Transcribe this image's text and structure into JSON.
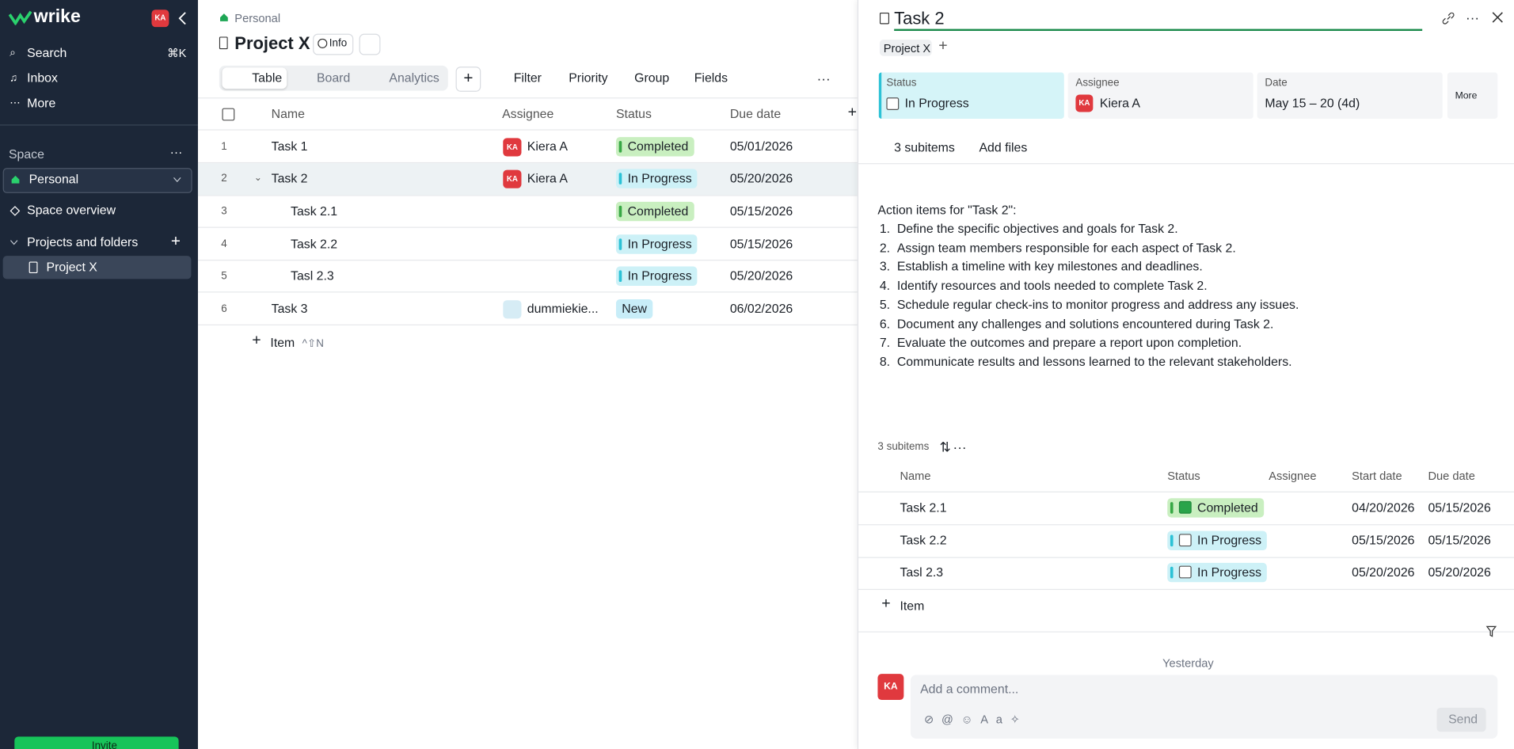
{
  "sidebar": {
    "brand": "wrike",
    "avatar": "KA",
    "nav": [
      {
        "label": "Search",
        "shortcut": "⌘K"
      },
      {
        "label": "Inbox"
      },
      {
        "label": "More"
      }
    ],
    "space_label": "Space",
    "space": "Personal",
    "space_overview": "Space overview",
    "projects_label": "Projects and folders",
    "project": "Project X",
    "invite": "Invite"
  },
  "header": {
    "breadcrumb": "Personal",
    "title": "Project X",
    "info": "Info"
  },
  "views": [
    "Table",
    "Board",
    "Analytics"
  ],
  "toolbar": [
    "Filter",
    "Priority",
    "Group",
    "Fields"
  ],
  "table": {
    "columns": [
      "Name",
      "Assignee",
      "Status",
      "Due date"
    ],
    "rows": [
      {
        "num": 1,
        "name": "Task 1",
        "initials": "KA",
        "assignee": "Kiera A",
        "status": "Completed",
        "due": "05/01/2026"
      },
      {
        "num": 2,
        "name": "Task 2",
        "initials": "KA",
        "assignee": "Kiera A",
        "status": "In Progress",
        "due": "05/20/2026"
      },
      {
        "num": 3,
        "name": "Task 2.1",
        "status": "Completed",
        "due": "05/15/2026"
      },
      {
        "num": 4,
        "name": "Task 2.2",
        "status": "In Progress",
        "due": "05/15/2026"
      },
      {
        "num": 5,
        "name": "Tasl 2.3",
        "status": "In Progress",
        "due": "05/20/2026"
      },
      {
        "num": 6,
        "name": "Task 3",
        "assignee": "dummiekie...",
        "status": "New",
        "due": "06/02/2026"
      }
    ],
    "add_item": "Item",
    "shortcut": "^⇧N"
  },
  "task_panel": {
    "title": "Task 2",
    "project": "Project X",
    "fields": [
      {
        "label": "Status",
        "value": "In Progress"
      },
      {
        "label": "Assignee",
        "value": "Kiera A",
        "initials": "KA"
      },
      {
        "label": "Date",
        "value": "May 15 – 20 (4d)"
      }
    ],
    "more": "More",
    "subitems_count": "3 subitems",
    "add_files": "Add files",
    "description_heading": "Action items for \"Task 2\":",
    "action_items": [
      "Define the specific objectives and goals for Task 2.",
      "Assign team members responsible for each aspect of Task 2.",
      "Establish a timeline with key milestones and deadlines.",
      "Identify resources and tools needed to complete Task 2.",
      "Schedule regular check-ins to monitor progress and address any issues.",
      "Document any challenges and solutions encountered during Task 2.",
      "Evaluate the outcomes and prepare a report upon completion.",
      "Communicate results and lessons learned to the relevant stakeholders."
    ],
    "subitems": {
      "label": "3 subitems",
      "columns": [
        "Name",
        "Status",
        "Assignee",
        "Start date",
        "Due date"
      ],
      "rows": [
        {
          "name": "Task 2.1",
          "status": "Completed",
          "start": "04/20/2026",
          "due": "05/15/2026"
        },
        {
          "name": "Task 2.2",
          "status": "In Progress",
          "start": "05/15/2026",
          "due": "05/15/2026"
        },
        {
          "name": "Tasl 2.3",
          "status": "In Progress",
          "start": "05/20/2026",
          "due": "05/20/2026"
        }
      ]
    },
    "add_item": "Item",
    "activity_date": "Yesterday",
    "comment_avatar": "KA",
    "comment_placeholder": "Add a comment...",
    "send": "Send"
  }
}
